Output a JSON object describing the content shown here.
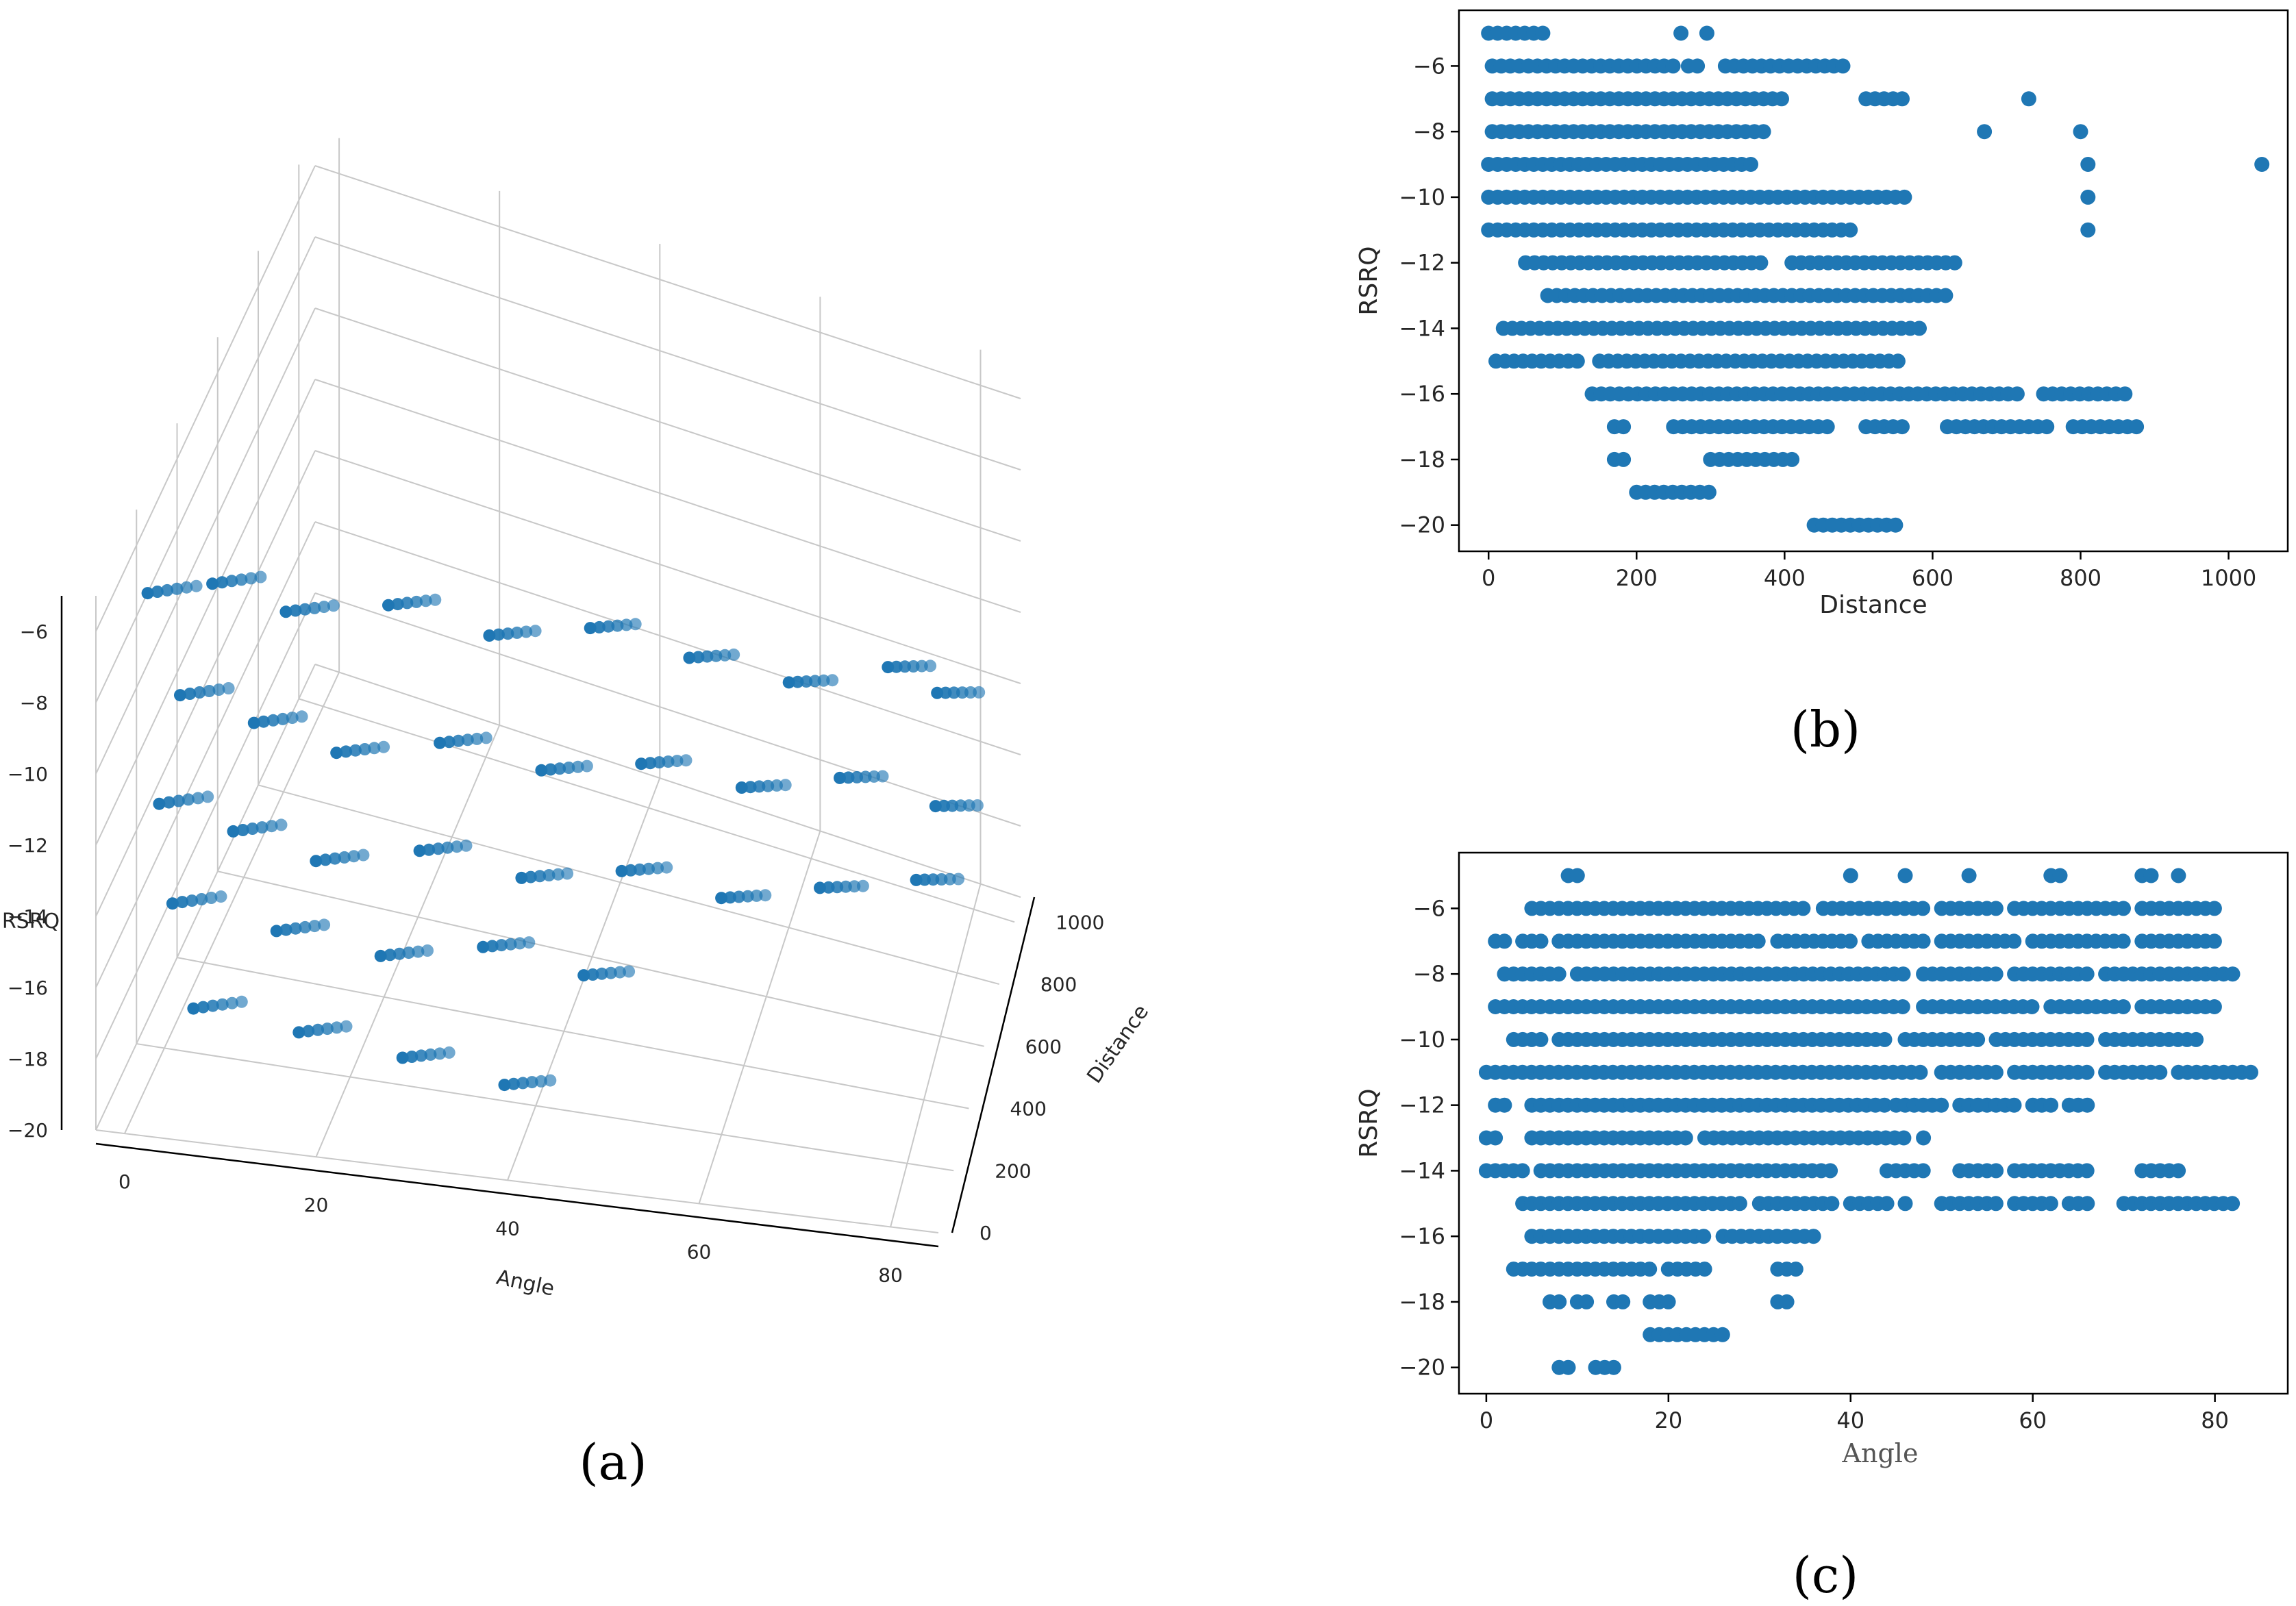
{
  "figure": {
    "captions": [
      "(a)",
      "(b)",
      "(c)"
    ]
  },
  "colors": {
    "marker": "#1f77b4",
    "axis": "#000000",
    "grid": "#c8c8c8"
  },
  "chart_data": [
    {
      "id": "a",
      "type": "scatter3d",
      "title": "",
      "xlabel": "Angle",
      "ylabel": "Distance",
      "zlabel": "RSRQ",
      "xticks": [
        0,
        20,
        40,
        60,
        80
      ],
      "yticks": [
        0,
        200,
        400,
        600,
        800,
        1000
      ],
      "zticks": [
        -6,
        -8,
        -10,
        -12,
        -14,
        -16,
        -18,
        -20
      ],
      "xlim": [
        -3,
        85
      ],
      "ylim": [
        0,
        1080
      ],
      "zlim": [
        -20,
        -5
      ],
      "series": [
        {
          "name": "measurements",
          "points": [
            [
              2,
              20,
              -5
            ],
            [
              8,
              60,
              -5
            ],
            [
              15,
              100,
              -6
            ],
            [
              25,
              150,
              -6
            ],
            [
              35,
              200,
              -7
            ],
            [
              45,
              260,
              -7
            ],
            [
              55,
              320,
              -8
            ],
            [
              65,
              400,
              -9
            ],
            [
              75,
              500,
              -9
            ],
            [
              80,
              560,
              -10
            ],
            [
              5,
              40,
              -8
            ],
            [
              12,
              80,
              -9
            ],
            [
              20,
              120,
              -10
            ],
            [
              30,
              180,
              -10
            ],
            [
              40,
              240,
              -11
            ],
            [
              50,
              300,
              -11
            ],
            [
              60,
              380,
              -12
            ],
            [
              70,
              460,
              -12
            ],
            [
              80,
              540,
              -13
            ],
            [
              3,
              30,
              -11
            ],
            [
              10,
              70,
              -12
            ],
            [
              18,
              110,
              -13
            ],
            [
              28,
              170,
              -13
            ],
            [
              38,
              230,
              -14
            ],
            [
              48,
              290,
              -14
            ],
            [
              58,
              360,
              -15
            ],
            [
              68,
              440,
              -15
            ],
            [
              78,
              520,
              -15
            ],
            [
              4,
              50,
              -14
            ],
            [
              14,
              100,
              -15
            ],
            [
              24,
              160,
              -16
            ],
            [
              34,
              220,
              -16
            ],
            [
              44,
              280,
              -17
            ],
            [
              6,
              60,
              -17
            ],
            [
              16,
              120,
              -18
            ],
            [
              26,
              180,
              -19
            ],
            [
              36,
              240,
              -20
            ]
          ]
        }
      ]
    },
    {
      "id": "b",
      "type": "scatter",
      "title": "",
      "xlabel": "Distance",
      "ylabel": "RSRQ",
      "xlim": [
        -40,
        1080
      ],
      "ylim": [
        -20.8,
        -4.3
      ],
      "xticks": [
        0,
        200,
        400,
        600,
        800,
        1000
      ],
      "yticks": [
        -6,
        -8,
        -10,
        -12,
        -14,
        -16,
        -18,
        -20
      ],
      "series": [
        {
          "name": "measurements",
          "segments": [
            {
              "y": -5,
              "ranges": [
                [
                  0,
                  80
                ],
                [
                  260,
                  260
                ],
                [
                  295,
                  295
                ]
              ]
            },
            {
              "y": -6,
              "ranges": [
                [
                  5,
                  250
                ],
                [
                  270,
                  290
                ],
                [
                  320,
                  480
                ]
              ]
            },
            {
              "y": -7,
              "ranges": [
                [
                  5,
                  400
                ],
                [
                  510,
                  570
                ],
                [
                  730,
                  730
                ]
              ]
            },
            {
              "y": -8,
              "ranges": [
                [
                  5,
                  380
                ],
                [
                  670,
                  670
                ],
                [
                  800,
                  800
                ]
              ]
            },
            {
              "y": -9,
              "ranges": [
                [
                  0,
                  360
                ],
                [
                  810,
                  810
                ],
                [
                  1045,
                  1050
                ]
              ]
            },
            {
              "y": -10,
              "ranges": [
                [
                  0,
                  570
                ],
                [
                  810,
                  810
                ]
              ]
            },
            {
              "y": -11,
              "ranges": [
                [
                  0,
                  500
                ],
                [
                  810,
                  810
                ]
              ]
            },
            {
              "y": -12,
              "ranges": [
                [
                  50,
                  370
                ],
                [
                  410,
                  640
                ]
              ]
            },
            {
              "y": -13,
              "ranges": [
                [
                  80,
                  620
                ]
              ]
            },
            {
              "y": -14,
              "ranges": [
                [
                  20,
                  590
                ]
              ]
            },
            {
              "y": -15,
              "ranges": [
                [
                  10,
                  120
                ],
                [
                  150,
                  560
                ]
              ]
            },
            {
              "y": -16,
              "ranges": [
                [
                  140,
                  720
                ],
                [
                  750,
                  870
                ]
              ]
            },
            {
              "y": -17,
              "ranges": [
                [
                  170,
                  190
                ],
                [
                  250,
                  460
                ],
                [
                  510,
                  570
                ],
                [
                  620,
                  760
                ],
                [
                  790,
                  880
                ]
              ]
            },
            {
              "y": -18,
              "ranges": [
                [
                  170,
                  190
                ],
                [
                  300,
                  420
                ]
              ]
            },
            {
              "y": -19,
              "ranges": [
                [
                  200,
                  300
                ]
              ]
            },
            {
              "y": -20,
              "ranges": [
                [
                  440,
                  560
                ]
              ]
            }
          ]
        }
      ]
    },
    {
      "id": "c",
      "type": "scatter",
      "title": "",
      "xlabel": "Angle",
      "ylabel": "RSRQ",
      "xlim": [
        -3,
        88
      ],
      "ylim": [
        -20.8,
        -4.3
      ],
      "xticks": [
        0,
        20,
        40,
        60,
        80
      ],
      "yticks": [
        -6,
        -8,
        -10,
        -12,
        -14,
        -16,
        -18,
        -20
      ],
      "series": [
        {
          "name": "measurements",
          "segments": [
            {
              "y": -5,
              "ranges": [
                [
                  9,
                  10
                ],
                [
                  40,
                  40
                ],
                [
                  46,
                  46
                ],
                [
                  53,
                  53
                ],
                [
                  62,
                  63
                ],
                [
                  72,
                  73
                ],
                [
                  76,
                  76
                ]
              ]
            },
            {
              "y": -6,
              "ranges": [
                [
                  5,
                  35
                ],
                [
                  37,
                  48
                ],
                [
                  50,
                  56
                ],
                [
                  58,
                  62
                ],
                [
                  63,
                  70
                ],
                [
                  72,
                  80
                ]
              ]
            },
            {
              "y": -7,
              "ranges": [
                [
                  1,
                  2
                ],
                [
                  4,
                  6
                ],
                [
                  8,
                  30
                ],
                [
                  32,
                  40
                ],
                [
                  42,
                  48
                ],
                [
                  50,
                  58
                ],
                [
                  60,
                  70
                ],
                [
                  72,
                  80
                ]
              ]
            },
            {
              "y": -8,
              "ranges": [
                [
                  2,
                  8
                ],
                [
                  10,
                  14
                ],
                [
                  15,
                  46
                ],
                [
                  48,
                  56
                ],
                [
                  58,
                  66
                ],
                [
                  68,
                  74
                ],
                [
                  75,
                  82
                ]
              ]
            },
            {
              "y": -9,
              "ranges": [
                [
                  1,
                  6
                ],
                [
                  7,
                  46
                ],
                [
                  48,
                  60
                ],
                [
                  62,
                  70
                ],
                [
                  72,
                  80
                ]
              ]
            },
            {
              "y": -10,
              "ranges": [
                [
                  3,
                  6
                ],
                [
                  8,
                  44
                ],
                [
                  46,
                  54
                ],
                [
                  56,
                  66
                ],
                [
                  68,
                  78
                ]
              ]
            },
            {
              "y": -11,
              "ranges": [
                [
                  0,
                  48
                ],
                [
                  50,
                  56
                ],
                [
                  58,
                  66
                ],
                [
                  68,
                  74
                ],
                [
                  76,
                  84
                ]
              ]
            },
            {
              "y": -12,
              "ranges": [
                [
                  1,
                  2
                ],
                [
                  5,
                  44
                ],
                [
                  45,
                  50
                ],
                [
                  52,
                  58
                ],
                [
                  60,
                  62
                ],
                [
                  64,
                  66
                ]
              ]
            },
            {
              "y": -13,
              "ranges": [
                [
                  0,
                  1
                ],
                [
                  5,
                  22
                ],
                [
                  24,
                  46
                ],
                [
                  48,
                  48
                ]
              ]
            },
            {
              "y": -14,
              "ranges": [
                [
                  0,
                  4
                ],
                [
                  6,
                  38
                ],
                [
                  44,
                  48
                ],
                [
                  52,
                  56
                ],
                [
                  58,
                  66
                ],
                [
                  72,
                  76
                ]
              ]
            },
            {
              "y": -15,
              "ranges": [
                [
                  4,
                  28
                ],
                [
                  30,
                  38
                ],
                [
                  40,
                  44
                ],
                [
                  46,
                  46
                ],
                [
                  50,
                  56
                ],
                [
                  58,
                  62
                ],
                [
                  64,
                  66
                ],
                [
                  70,
                  82
                ]
              ]
            },
            {
              "y": -16,
              "ranges": [
                [
                  5,
                  24
                ],
                [
                  26,
                  36
                ]
              ]
            },
            {
              "y": -17,
              "ranges": [
                [
                  3,
                  6
                ],
                [
                  7,
                  18
                ],
                [
                  20,
                  24
                ],
                [
                  32,
                  34
                ]
              ]
            },
            {
              "y": -18,
              "ranges": [
                [
                  7,
                  8
                ],
                [
                  10,
                  11
                ],
                [
                  14,
                  15
                ],
                [
                  18,
                  20
                ],
                [
                  32,
                  33
                ]
              ]
            },
            {
              "y": -19,
              "ranges": [
                [
                  18,
                  26
                ]
              ]
            },
            {
              "y": -20,
              "ranges": [
                [
                  8,
                  9
                ],
                [
                  12,
                  14
                ]
              ]
            }
          ]
        }
      ]
    }
  ]
}
